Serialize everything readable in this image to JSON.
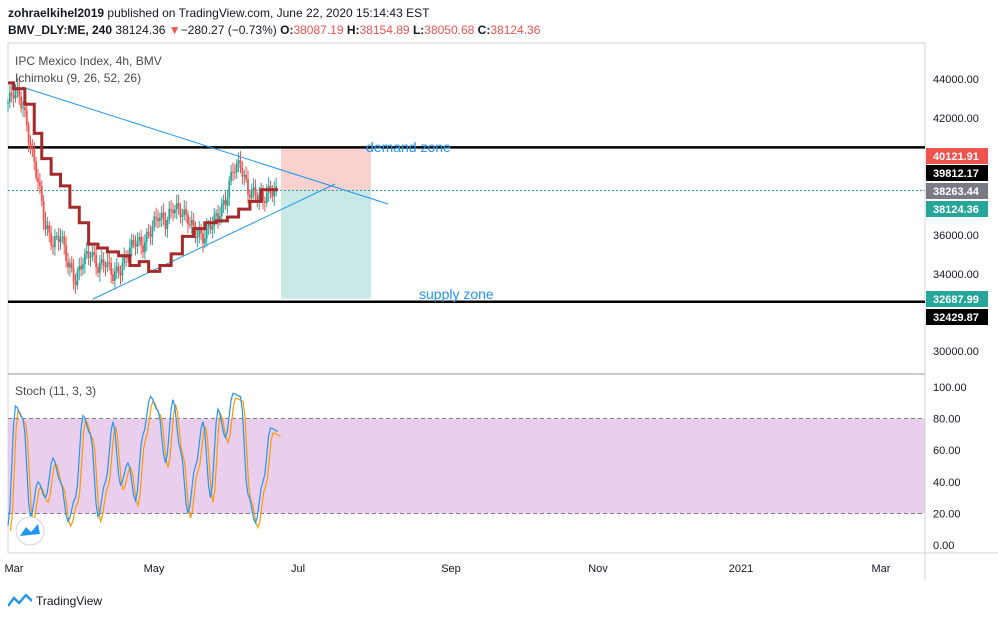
{
  "header": {
    "author": "zohraelkihel2019",
    "published_text": "published on TradingView.com, June 22, 2020 15:14:43 EST",
    "symbol": "BMV_DLY:ME, 240",
    "last": "38124.36",
    "change_arrow": "▼",
    "change": "−280.27 (−0.73%)",
    "o_label": "O:",
    "o_val": "38087.19",
    "h_label": "H:",
    "h_val": "38154.89",
    "l_label": "L:",
    "l_val": "38050.68",
    "c_label": "C:",
    "c_val": "38124.36"
  },
  "main_pane": {
    "title": "IPC Mexico Index, 4h, BMV",
    "indicator": "Ichimoku (9, 26, 52, 26)",
    "annotations": {
      "demand": "demand zone",
      "supply": "supply zone"
    },
    "y_ticks": [
      "44000.00",
      "42000.00",
      "36000.00",
      "34000.00",
      "30000.00"
    ],
    "price_tags": [
      {
        "label": "40121.91",
        "color": "#ef5350"
      },
      {
        "label": "39812.17",
        "color": "#000000"
      },
      {
        "label": "38263.44",
        "color": "#787b86"
      },
      {
        "label": "38124.36",
        "color": "#26a69a"
      },
      {
        "label": "32687.99",
        "color": "#26a69a"
      },
      {
        "label": "32429.87",
        "color": "#000000"
      }
    ]
  },
  "stoch_pane": {
    "title": "Stoch (11, 3, 3)",
    "y_ticks": [
      "100.00",
      "80.00",
      "60.00",
      "40.00",
      "20.00",
      "0.00"
    ]
  },
  "x_ticks": [
    "Mar",
    "May",
    "Jul",
    "Sep",
    "Nov",
    "2021",
    "Mar"
  ],
  "brand": "TradingView",
  "colors": {
    "up": "#26a69a",
    "down": "#ef5350",
    "baseline": "#a52a2a",
    "trend": "#2196f3",
    "stoch_k": "#2196f3",
    "stoch_d": "#ff9800",
    "stoch_band": "#e1bee7"
  },
  "chart_data": {
    "type": "line",
    "main": {
      "price_range": [
        28400,
        45600
      ],
      "ichimoku_baseline": [
        [
          0,
          43800
        ],
        [
          3,
          43500
        ],
        [
          6,
          42700
        ],
        [
          8,
          41200
        ],
        [
          10,
          39900
        ],
        [
          13,
          39100
        ],
        [
          15,
          38500
        ],
        [
          18,
          37400
        ],
        [
          20,
          36600
        ],
        [
          23,
          35500
        ],
        [
          25,
          35300
        ],
        [
          28,
          35100
        ],
        [
          31,
          34900
        ],
        [
          34,
          34400
        ],
        [
          36,
          34600
        ],
        [
          39,
          34100
        ],
        [
          42,
          34400
        ],
        [
          45,
          35000
        ],
        [
          48,
          35900
        ],
        [
          51,
          36300
        ],
        [
          54,
          36600
        ],
        [
          57,
          36700
        ],
        [
          60,
          36900
        ],
        [
          63,
          37300
        ],
        [
          66,
          37700
        ],
        [
          69,
          38300
        ],
        [
          72,
          38300
        ]
      ],
      "close_series": [
        [
          0,
          42800
        ],
        [
          2,
          43500
        ],
        [
          4,
          42600
        ],
        [
          6,
          40500
        ],
        [
          8,
          38800
        ],
        [
          10,
          36400
        ],
        [
          12,
          35500
        ],
        [
          14,
          36000
        ],
        [
          16,
          34500
        ],
        [
          18,
          33600
        ],
        [
          20,
          34700
        ],
        [
          22,
          35100
        ],
        [
          24,
          34300
        ],
        [
          26,
          34600
        ],
        [
          28,
          33900
        ],
        [
          30,
          34200
        ],
        [
          32,
          35100
        ],
        [
          34,
          35700
        ],
        [
          36,
          35400
        ],
        [
          38,
          36200
        ],
        [
          40,
          37000
        ],
        [
          42,
          36600
        ],
        [
          44,
          37400
        ],
        [
          46,
          37200
        ],
        [
          48,
          36800
        ],
        [
          50,
          36100
        ],
        [
          52,
          35800
        ],
        [
          54,
          36500
        ],
        [
          56,
          37000
        ],
        [
          58,
          37700
        ],
        [
          60,
          39400
        ],
        [
          62,
          39600
        ],
        [
          64,
          38200
        ],
        [
          66,
          38100
        ],
        [
          68,
          37800
        ],
        [
          70,
          38300
        ],
        [
          72,
          38124
        ]
      ],
      "demand_zone_range": [
        38263.44,
        40121.91
      ],
      "supply_zone_range": [
        32687.99,
        38263.44
      ],
      "horizontal_levels": [
        39812.17,
        32429.87,
        38263.44
      ]
    },
    "stoch": {
      "range": [
        0,
        100
      ],
      "bands": [
        20,
        80
      ],
      "k": [
        [
          0,
          12
        ],
        [
          2,
          88
        ],
        [
          4,
          80
        ],
        [
          6,
          18
        ],
        [
          8,
          40
        ],
        [
          10,
          30
        ],
        [
          12,
          55
        ],
        [
          14,
          40
        ],
        [
          16,
          15
        ],
        [
          18,
          30
        ],
        [
          20,
          82
        ],
        [
          22,
          70
        ],
        [
          24,
          18
        ],
        [
          26,
          40
        ],
        [
          28,
          78
        ],
        [
          30,
          38
        ],
        [
          32,
          52
        ],
        [
          34,
          28
        ],
        [
          36,
          70
        ],
        [
          38,
          94
        ],
        [
          40,
          85
        ],
        [
          42,
          52
        ],
        [
          44,
          92
        ],
        [
          46,
          60
        ],
        [
          48,
          20
        ],
        [
          50,
          50
        ],
        [
          52,
          78
        ],
        [
          54,
          30
        ],
        [
          56,
          86
        ],
        [
          58,
          68
        ],
        [
          60,
          96
        ],
        [
          62,
          94
        ],
        [
          64,
          32
        ],
        [
          66,
          14
        ],
        [
          68,
          40
        ],
        [
          70,
          74
        ],
        [
          72,
          72
        ]
      ]
    },
    "x_labels": [
      "Mar",
      "May",
      "Jul",
      "Sep",
      "Nov",
      "2021",
      "Mar"
    ]
  }
}
